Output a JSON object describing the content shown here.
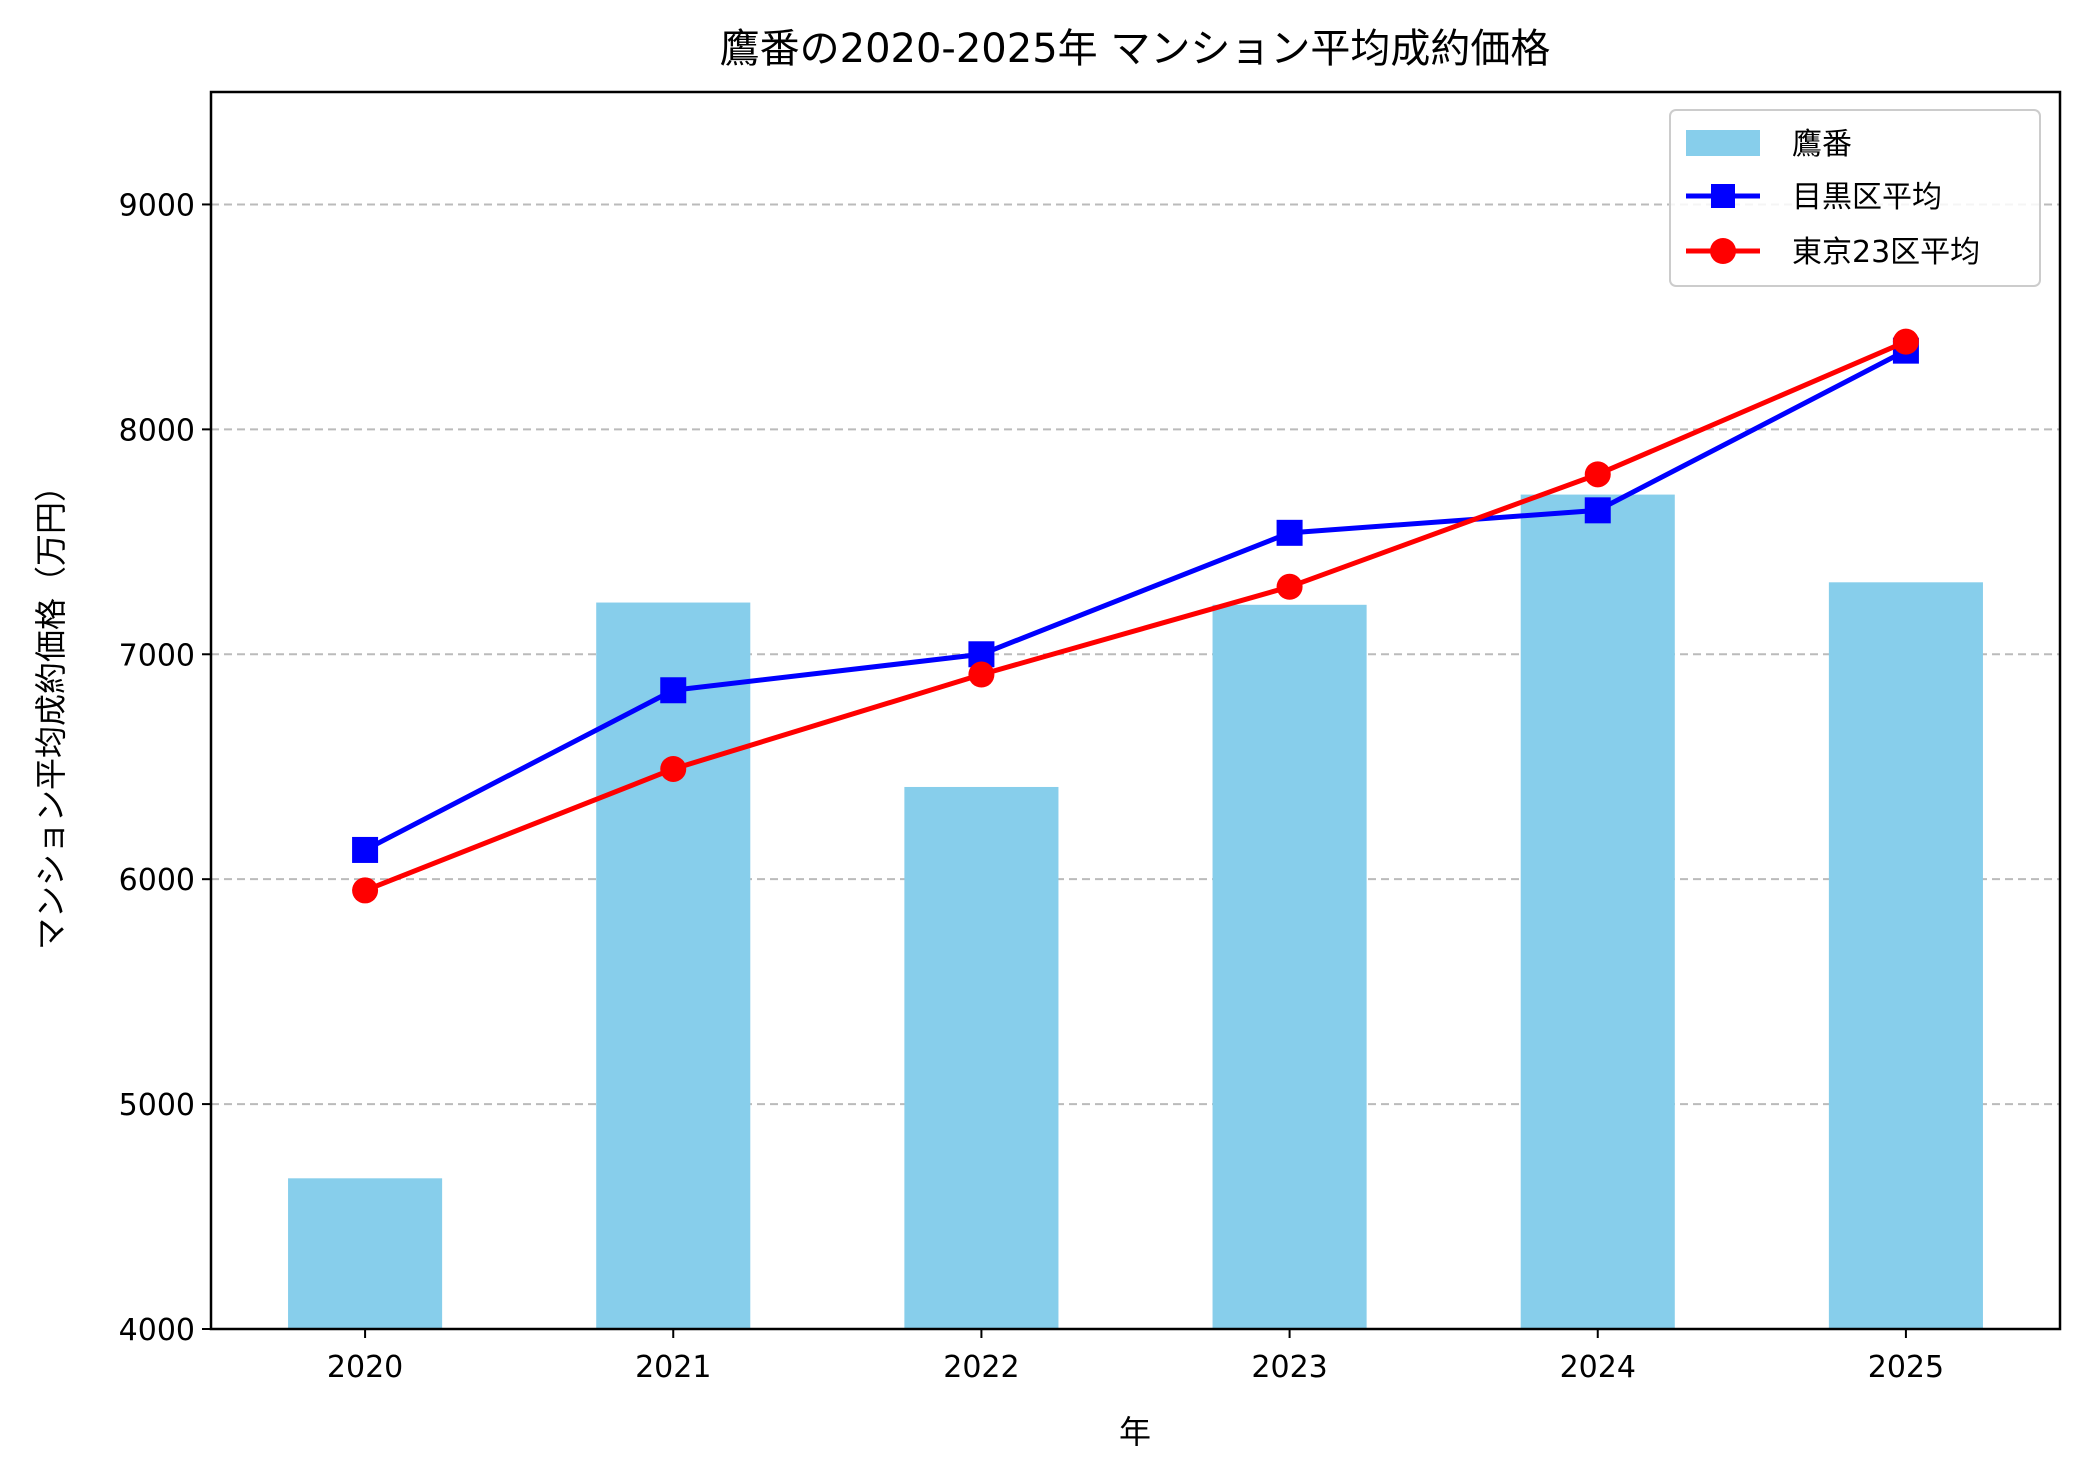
{
  "chart_data": {
    "type": "bar+line",
    "title": "鷹番の2020-2025年 マンション平均成約価格",
    "xlabel": "年",
    "ylabel": "マンション平均成約価格（万円）",
    "categories": [
      "2020",
      "2021",
      "2022",
      "2023",
      "2024",
      "2025"
    ],
    "ylim": [
      4000,
      9500
    ],
    "yticks": [
      4000,
      5000,
      6000,
      7000,
      8000,
      9000
    ],
    "grid": "y dashed",
    "legend_position": "top-right",
    "series": [
      {
        "name": "鷹番",
        "type": "bar",
        "color": "#87CEEB",
        "values": [
          4670,
          7230,
          6410,
          7220,
          7710,
          7320
        ]
      },
      {
        "name": "目黒区平均",
        "type": "line",
        "marker": "square",
        "color": "#0000FF",
        "values": [
          6130,
          6840,
          7000,
          7540,
          7640,
          8350
        ]
      },
      {
        "name": "東京23区平均",
        "type": "line",
        "marker": "circle",
        "color": "#FF0000",
        "values": [
          5950,
          6490,
          6910,
          7300,
          7800,
          8390
        ]
      }
    ]
  }
}
